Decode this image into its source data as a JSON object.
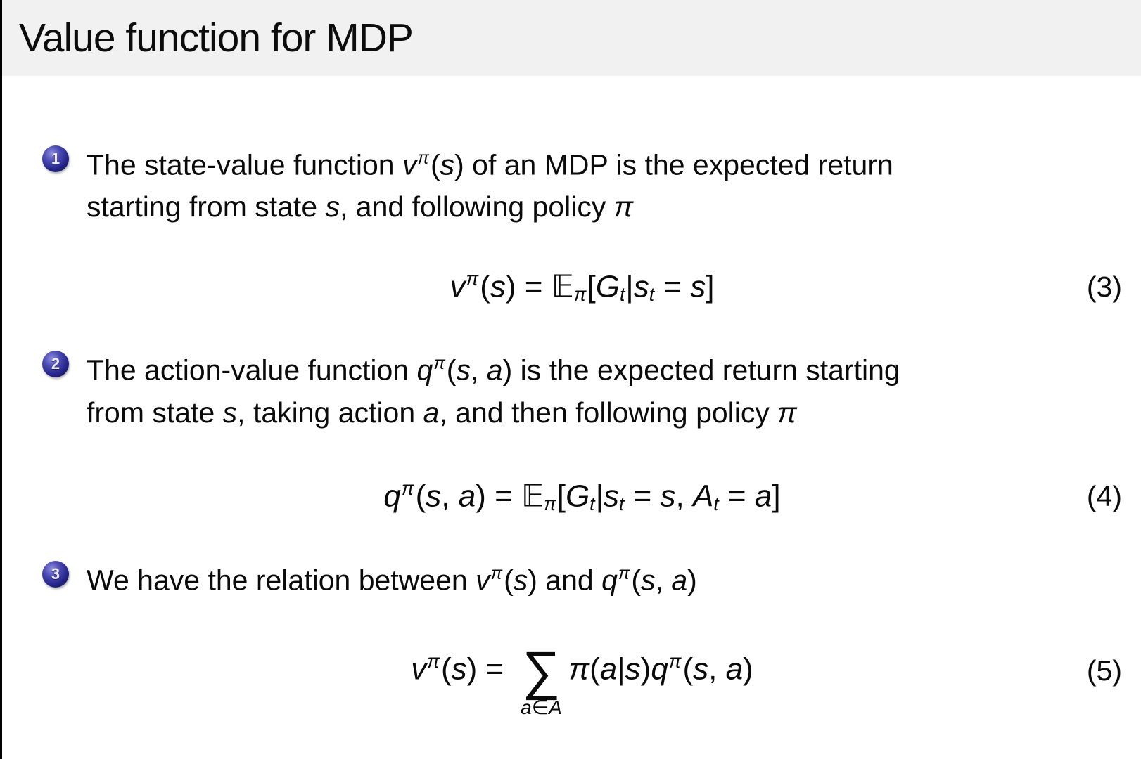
{
  "slide": {
    "title": "Value function for MDP"
  },
  "colors": {
    "title_band_bg": "#f1f1f1",
    "badge_blue": "#26268c",
    "text": "#0a0a0a",
    "background": "#ffffff"
  },
  "bullets": [
    {
      "number": "1",
      "lines": [
        [
          {
            "t": "The state-value function ",
            "k": "n"
          },
          {
            "t": "v",
            "k": "i"
          },
          {
            "t": "π",
            "k": "sup"
          },
          {
            "t": "(",
            "k": "n"
          },
          {
            "t": "s",
            "k": "i"
          },
          {
            "t": ")",
            "k": "n"
          },
          {
            "t": " of an MDP is the expected return",
            "k": "n"
          }
        ],
        [
          {
            "t": "starting from state ",
            "k": "n"
          },
          {
            "t": "s",
            "k": "i"
          },
          {
            "t": ", and following policy ",
            "k": "n"
          },
          {
            "t": "π",
            "k": "i"
          }
        ]
      ]
    },
    {
      "number": "2",
      "lines": [
        [
          {
            "t": "The action-value function ",
            "k": "n"
          },
          {
            "t": "q",
            "k": "i"
          },
          {
            "t": "π",
            "k": "sup"
          },
          {
            "t": "(",
            "k": "n"
          },
          {
            "t": "s",
            "k": "i"
          },
          {
            "t": ", ",
            "k": "n"
          },
          {
            "t": "a",
            "k": "i"
          },
          {
            "t": ")",
            "k": "n"
          },
          {
            "t": " is the expected return starting",
            "k": "n"
          }
        ],
        [
          {
            "t": "from state ",
            "k": "n"
          },
          {
            "t": "s",
            "k": "i"
          },
          {
            "t": ", taking action ",
            "k": "n"
          },
          {
            "t": "a",
            "k": "i"
          },
          {
            "t": ", and then following policy ",
            "k": "n"
          },
          {
            "t": "π",
            "k": "i"
          }
        ]
      ]
    },
    {
      "number": "3",
      "lines": [
        [
          {
            "t": "We have the relation between ",
            "k": "n"
          },
          {
            "t": "v",
            "k": "i"
          },
          {
            "t": "π",
            "k": "sup"
          },
          {
            "t": "(",
            "k": "n"
          },
          {
            "t": "s",
            "k": "i"
          },
          {
            "t": ")",
            "k": "n"
          },
          {
            "t": " and ",
            "k": "n"
          },
          {
            "t": "q",
            "k": "i"
          },
          {
            "t": "π",
            "k": "sup"
          },
          {
            "t": "(",
            "k": "n"
          },
          {
            "t": "s",
            "k": "i"
          },
          {
            "t": ", ",
            "k": "n"
          },
          {
            "t": "a",
            "k": "i"
          },
          {
            "t": ")",
            "k": "n"
          }
        ]
      ]
    }
  ],
  "equations": [
    {
      "number": "(3)",
      "tokens": [
        {
          "t": "v",
          "k": "i"
        },
        {
          "t": "π",
          "k": "sup"
        },
        {
          "t": "(",
          "k": "n"
        },
        {
          "t": "s",
          "k": "i"
        },
        {
          "t": ")",
          "k": "n"
        },
        {
          "t": " = ",
          "k": "n"
        },
        {
          "t": "𝔼",
          "k": "n"
        },
        {
          "t": "π",
          "k": "sub"
        },
        {
          "t": "[",
          "k": "n"
        },
        {
          "t": "G",
          "k": "i"
        },
        {
          "t": "t",
          "k": "sub"
        },
        {
          "t": "|",
          "k": "n"
        },
        {
          "t": "s",
          "k": "i"
        },
        {
          "t": "t",
          "k": "sub"
        },
        {
          "t": " = ",
          "k": "n"
        },
        {
          "t": "s",
          "k": "i"
        },
        {
          "t": "]",
          "k": "n"
        }
      ]
    },
    {
      "number": "(4)",
      "tokens": [
        {
          "t": "q",
          "k": "i"
        },
        {
          "t": "π",
          "k": "sup"
        },
        {
          "t": "(",
          "k": "n"
        },
        {
          "t": "s",
          "k": "i"
        },
        {
          "t": ", ",
          "k": "n"
        },
        {
          "t": "a",
          "k": "i"
        },
        {
          "t": ")",
          "k": "n"
        },
        {
          "t": " = ",
          "k": "n"
        },
        {
          "t": "𝔼",
          "k": "n"
        },
        {
          "t": "π",
          "k": "sub"
        },
        {
          "t": "[",
          "k": "n"
        },
        {
          "t": "G",
          "k": "i"
        },
        {
          "t": "t",
          "k": "sub"
        },
        {
          "t": "|",
          "k": "n"
        },
        {
          "t": "s",
          "k": "i"
        },
        {
          "t": "t",
          "k": "sub"
        },
        {
          "t": " = ",
          "k": "n"
        },
        {
          "t": "s",
          "k": "i"
        },
        {
          "t": ", ",
          "k": "n"
        },
        {
          "t": "A",
          "k": "i"
        },
        {
          "t": "t",
          "k": "sub"
        },
        {
          "t": " = ",
          "k": "n"
        },
        {
          "t": "a",
          "k": "i"
        },
        {
          "t": "]",
          "k": "n"
        }
      ]
    },
    {
      "number": "(5)",
      "tokens": [
        {
          "t": "v",
          "k": "i"
        },
        {
          "t": "π",
          "k": "sup"
        },
        {
          "t": "(",
          "k": "n"
        },
        {
          "t": "s",
          "k": "i"
        },
        {
          "t": ")",
          "k": "n"
        },
        {
          "t": " = ",
          "k": "n"
        },
        {
          "t": "∑",
          "k": "sum",
          "under": [
            {
              "t": "a",
              "k": "i"
            },
            {
              "t": "∈",
              "k": "n"
            },
            {
              "t": "A",
              "k": "i"
            }
          ]
        },
        {
          "t": "π",
          "k": "i"
        },
        {
          "t": "(",
          "k": "n"
        },
        {
          "t": "a",
          "k": "i"
        },
        {
          "t": "|",
          "k": "n"
        },
        {
          "t": "s",
          "k": "i"
        },
        {
          "t": ")",
          "k": "n"
        },
        {
          "t": "q",
          "k": "i"
        },
        {
          "t": "π",
          "k": "sup"
        },
        {
          "t": "(",
          "k": "n"
        },
        {
          "t": "s",
          "k": "i"
        },
        {
          "t": ", ",
          "k": "n"
        },
        {
          "t": "a",
          "k": "i"
        },
        {
          "t": ")",
          "k": "n"
        }
      ]
    }
  ]
}
